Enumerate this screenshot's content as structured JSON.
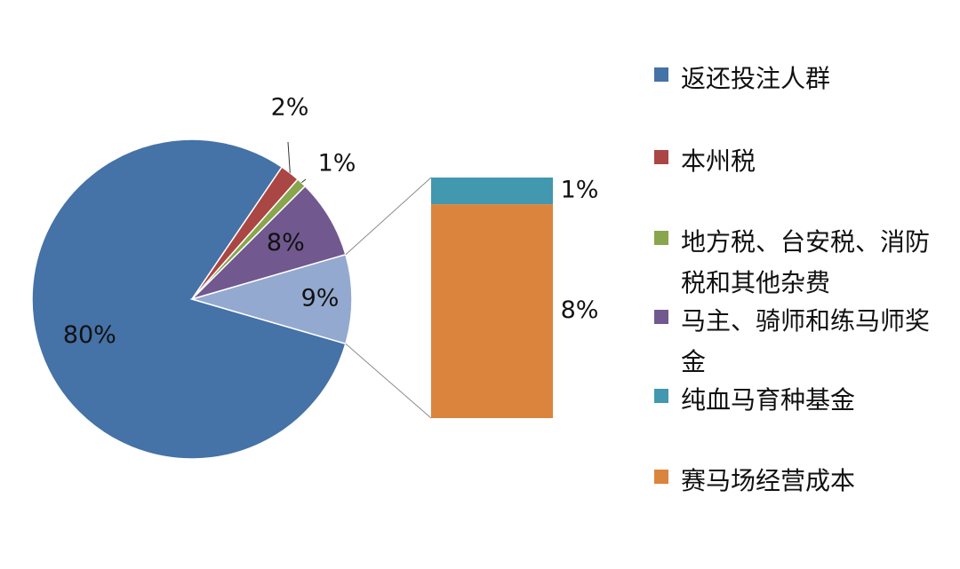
{
  "chart_data": {
    "type": "pie",
    "subtype": "pie-of-bar",
    "slices": [
      {
        "label": "返还投注人群",
        "value": 80,
        "display": "80%",
        "color": "#4572A7"
      },
      {
        "label": "本州税",
        "value": 2,
        "display": "2%",
        "color": "#AA4643"
      },
      {
        "label": "地方税、台安税、消防税和其他杂费",
        "value": 1,
        "display": "1%",
        "color": "#89A54E"
      },
      {
        "label": "马主、骑师和练马师奖金",
        "value": 8,
        "display": "8%",
        "color": "#71588F"
      }
    ],
    "breakout_slice": {
      "display": "9%",
      "value": 9,
      "color": "#93A9CF"
    },
    "breakout_bar": [
      {
        "label": "纯血马育种基金",
        "value": 1,
        "display": "1%",
        "color": "#4198AF"
      },
      {
        "label": "赛马场经营成本",
        "value": 8,
        "display": "8%",
        "color": "#DB843D"
      }
    ],
    "legend_position": "right"
  },
  "legend": [
    {
      "label": "返还投注人群",
      "color": "#4572A7"
    },
    {
      "label": "本州税",
      "color": "#AA4643"
    },
    {
      "label": "地方税、台安税、消防税和其他杂费",
      "color": "#89A54E"
    },
    {
      "label": "马主、骑师和练马师奖金",
      "color": "#71588F"
    },
    {
      "label": "纯血马育种基金",
      "color": "#4198AF"
    },
    {
      "label": "赛马场经营成本",
      "color": "#DB843D"
    }
  ]
}
